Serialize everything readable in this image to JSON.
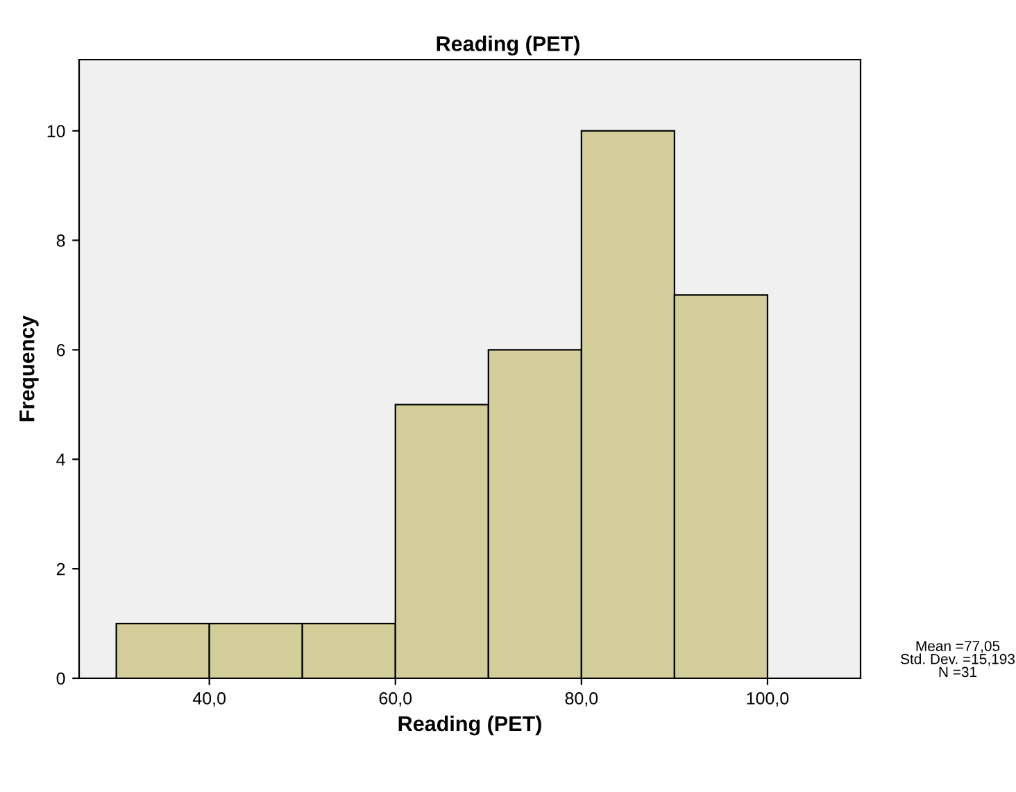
{
  "chart_data": {
    "type": "histogram",
    "title": "Reading (PET)",
    "xlabel": "Reading (PET)",
    "ylabel": "Frequency",
    "bins": [
      30,
      40,
      50,
      60,
      70,
      80,
      90,
      100
    ],
    "values": [
      1,
      1,
      1,
      5,
      6,
      10,
      7
    ],
    "color": "#d3ce99",
    "xlim": [
      26,
      110
    ],
    "ylim": [
      0,
      11.3
    ],
    "xticks": [
      {
        "value": 40,
        "label": "40,0"
      },
      {
        "value": 60,
        "label": "60,0"
      },
      {
        "value": 80,
        "label": "80,0"
      },
      {
        "value": 100,
        "label": "100,0"
      }
    ],
    "yticks": [
      0,
      2,
      4,
      6,
      8,
      10
    ],
    "grid": false,
    "legend": false,
    "annotations": [
      "Mean =77,05\nStd. Dev. =15,193\nN =31"
    ]
  }
}
